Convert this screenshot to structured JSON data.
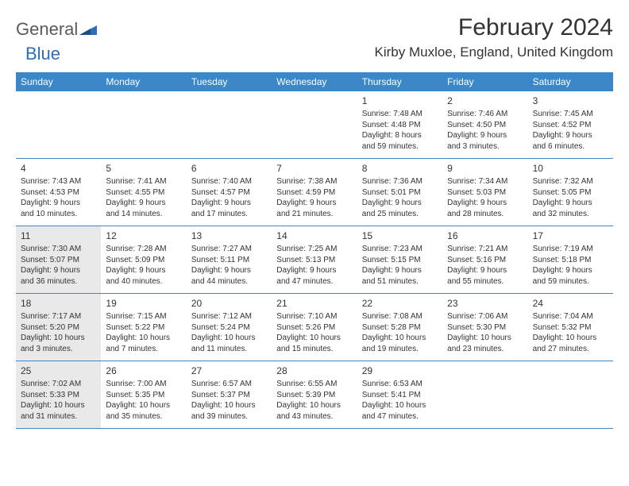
{
  "logo": {
    "word1": "General",
    "word2": "Blue"
  },
  "title": "February 2024",
  "location": "Kirby Muxloe, England, United Kingdom",
  "colors": {
    "header_bg": "#3b87c8",
    "header_text": "#ffffff",
    "logo_gray": "#5a5a5a",
    "logo_blue": "#2d6fb5",
    "shade_bg": "#e9e9e9",
    "border": "#3b87c8",
    "text": "#333333",
    "page_bg": "#ffffff"
  },
  "typography": {
    "title_fontsize": 30,
    "location_fontsize": 17,
    "day_header_fontsize": 12,
    "daynum_fontsize": 12,
    "cell_fontsize": 10
  },
  "day_names": [
    "Sunday",
    "Monday",
    "Tuesday",
    "Wednesday",
    "Thursday",
    "Friday",
    "Saturday"
  ],
  "weeks": [
    [
      {
        "empty": true
      },
      {
        "empty": true
      },
      {
        "empty": true
      },
      {
        "empty": true
      },
      {
        "num": "1",
        "sunrise": "Sunrise: 7:48 AM",
        "sunset": "Sunset: 4:48 PM",
        "day1": "Daylight: 8 hours",
        "day2": "and 59 minutes."
      },
      {
        "num": "2",
        "sunrise": "Sunrise: 7:46 AM",
        "sunset": "Sunset: 4:50 PM",
        "day1": "Daylight: 9 hours",
        "day2": "and 3 minutes."
      },
      {
        "num": "3",
        "sunrise": "Sunrise: 7:45 AM",
        "sunset": "Sunset: 4:52 PM",
        "day1": "Daylight: 9 hours",
        "day2": "and 6 minutes."
      }
    ],
    [
      {
        "num": "4",
        "sunrise": "Sunrise: 7:43 AM",
        "sunset": "Sunset: 4:53 PM",
        "day1": "Daylight: 9 hours",
        "day2": "and 10 minutes."
      },
      {
        "num": "5",
        "sunrise": "Sunrise: 7:41 AM",
        "sunset": "Sunset: 4:55 PM",
        "day1": "Daylight: 9 hours",
        "day2": "and 14 minutes."
      },
      {
        "num": "6",
        "sunrise": "Sunrise: 7:40 AM",
        "sunset": "Sunset: 4:57 PM",
        "day1": "Daylight: 9 hours",
        "day2": "and 17 minutes."
      },
      {
        "num": "7",
        "sunrise": "Sunrise: 7:38 AM",
        "sunset": "Sunset: 4:59 PM",
        "day1": "Daylight: 9 hours",
        "day2": "and 21 minutes."
      },
      {
        "num": "8",
        "sunrise": "Sunrise: 7:36 AM",
        "sunset": "Sunset: 5:01 PM",
        "day1": "Daylight: 9 hours",
        "day2": "and 25 minutes."
      },
      {
        "num": "9",
        "sunrise": "Sunrise: 7:34 AM",
        "sunset": "Sunset: 5:03 PM",
        "day1": "Daylight: 9 hours",
        "day2": "and 28 minutes."
      },
      {
        "num": "10",
        "sunrise": "Sunrise: 7:32 AM",
        "sunset": "Sunset: 5:05 PM",
        "day1": "Daylight: 9 hours",
        "day2": "and 32 minutes."
      }
    ],
    [
      {
        "num": "11",
        "shade": true,
        "sunrise": "Sunrise: 7:30 AM",
        "sunset": "Sunset: 5:07 PM",
        "day1": "Daylight: 9 hours",
        "day2": "and 36 minutes."
      },
      {
        "num": "12",
        "sunrise": "Sunrise: 7:28 AM",
        "sunset": "Sunset: 5:09 PM",
        "day1": "Daylight: 9 hours",
        "day2": "and 40 minutes."
      },
      {
        "num": "13",
        "sunrise": "Sunrise: 7:27 AM",
        "sunset": "Sunset: 5:11 PM",
        "day1": "Daylight: 9 hours",
        "day2": "and 44 minutes."
      },
      {
        "num": "14",
        "sunrise": "Sunrise: 7:25 AM",
        "sunset": "Sunset: 5:13 PM",
        "day1": "Daylight: 9 hours",
        "day2": "and 47 minutes."
      },
      {
        "num": "15",
        "sunrise": "Sunrise: 7:23 AM",
        "sunset": "Sunset: 5:15 PM",
        "day1": "Daylight: 9 hours",
        "day2": "and 51 minutes."
      },
      {
        "num": "16",
        "sunrise": "Sunrise: 7:21 AM",
        "sunset": "Sunset: 5:16 PM",
        "day1": "Daylight: 9 hours",
        "day2": "and 55 minutes."
      },
      {
        "num": "17",
        "sunrise": "Sunrise: 7:19 AM",
        "sunset": "Sunset: 5:18 PM",
        "day1": "Daylight: 9 hours",
        "day2": "and 59 minutes."
      }
    ],
    [
      {
        "num": "18",
        "shade": true,
        "sunrise": "Sunrise: 7:17 AM",
        "sunset": "Sunset: 5:20 PM",
        "day1": "Daylight: 10 hours",
        "day2": "and 3 minutes."
      },
      {
        "num": "19",
        "sunrise": "Sunrise: 7:15 AM",
        "sunset": "Sunset: 5:22 PM",
        "day1": "Daylight: 10 hours",
        "day2": "and 7 minutes."
      },
      {
        "num": "20",
        "sunrise": "Sunrise: 7:12 AM",
        "sunset": "Sunset: 5:24 PM",
        "day1": "Daylight: 10 hours",
        "day2": "and 11 minutes."
      },
      {
        "num": "21",
        "sunrise": "Sunrise: 7:10 AM",
        "sunset": "Sunset: 5:26 PM",
        "day1": "Daylight: 10 hours",
        "day2": "and 15 minutes."
      },
      {
        "num": "22",
        "sunrise": "Sunrise: 7:08 AM",
        "sunset": "Sunset: 5:28 PM",
        "day1": "Daylight: 10 hours",
        "day2": "and 19 minutes."
      },
      {
        "num": "23",
        "sunrise": "Sunrise: 7:06 AM",
        "sunset": "Sunset: 5:30 PM",
        "day1": "Daylight: 10 hours",
        "day2": "and 23 minutes."
      },
      {
        "num": "24",
        "sunrise": "Sunrise: 7:04 AM",
        "sunset": "Sunset: 5:32 PM",
        "day1": "Daylight: 10 hours",
        "day2": "and 27 minutes."
      }
    ],
    [
      {
        "num": "25",
        "shade": true,
        "sunrise": "Sunrise: 7:02 AM",
        "sunset": "Sunset: 5:33 PM",
        "day1": "Daylight: 10 hours",
        "day2": "and 31 minutes."
      },
      {
        "num": "26",
        "sunrise": "Sunrise: 7:00 AM",
        "sunset": "Sunset: 5:35 PM",
        "day1": "Daylight: 10 hours",
        "day2": "and 35 minutes."
      },
      {
        "num": "27",
        "sunrise": "Sunrise: 6:57 AM",
        "sunset": "Sunset: 5:37 PM",
        "day1": "Daylight: 10 hours",
        "day2": "and 39 minutes."
      },
      {
        "num": "28",
        "sunrise": "Sunrise: 6:55 AM",
        "sunset": "Sunset: 5:39 PM",
        "day1": "Daylight: 10 hours",
        "day2": "and 43 minutes."
      },
      {
        "num": "29",
        "sunrise": "Sunrise: 6:53 AM",
        "sunset": "Sunset: 5:41 PM",
        "day1": "Daylight: 10 hours",
        "day2": "and 47 minutes."
      },
      {
        "empty": true
      },
      {
        "empty": true
      }
    ]
  ]
}
